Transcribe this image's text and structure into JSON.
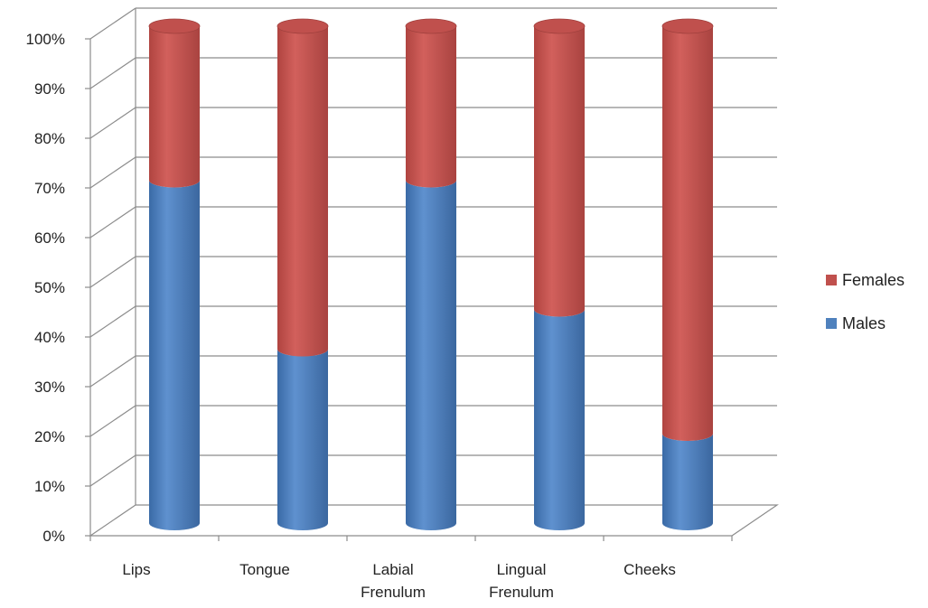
{
  "chart_data": {
    "type": "bar",
    "stacked": "percent",
    "style": "3d-cylinder",
    "categories": [
      [
        "Lips"
      ],
      [
        "Tongue"
      ],
      [
        "Labial",
        "Frenulum"
      ],
      [
        "Lingual",
        "Frenulum"
      ],
      [
        "Cheeks"
      ]
    ],
    "series": [
      {
        "name": "Males",
        "color": "#4F81BD",
        "values": [
          69,
          35,
          69,
          43,
          18
        ]
      },
      {
        "name": "Females",
        "color": "#C0504D",
        "values": [
          31,
          65,
          31,
          57,
          82
        ]
      }
    ],
    "yticks": [
      "0%",
      "10%",
      "20%",
      "30%",
      "40%",
      "50%",
      "60%",
      "70%",
      "80%",
      "90%",
      "100%"
    ],
    "ylim": [
      0,
      100
    ],
    "grid": true,
    "legend_position": "right",
    "legend_order": [
      "Females",
      "Males"
    ]
  }
}
